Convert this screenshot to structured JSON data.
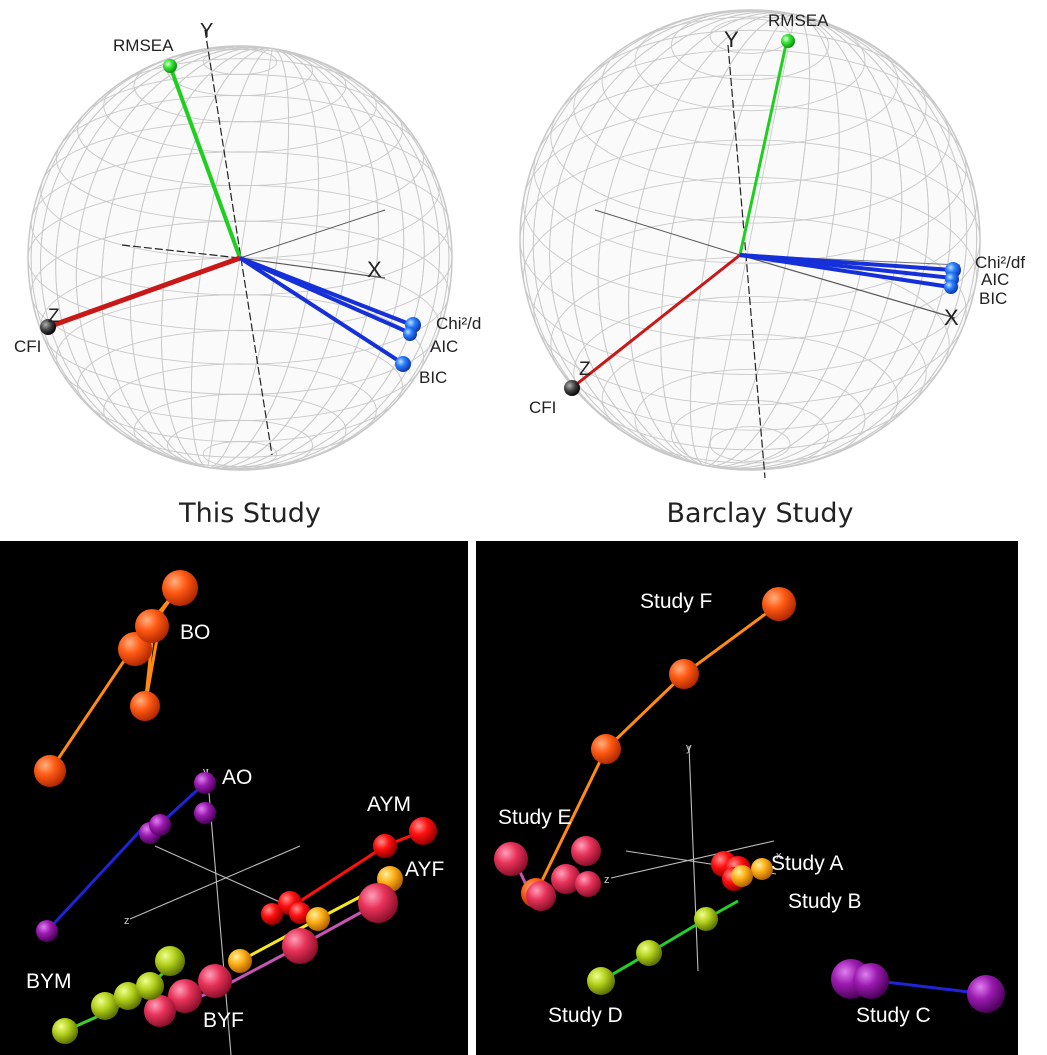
{
  "captions": {
    "left": "This Study",
    "right": "Barclay Study"
  },
  "axes": {
    "x": "X",
    "y": "Y",
    "z": "Z",
    "x_small": "x",
    "y_small": "y",
    "z_small": "z"
  },
  "sphere_left": {
    "labels": {
      "rmsea": "RMSEA",
      "cfi": "CFI",
      "chi": "Chi²/d",
      "aic": "AIC",
      "bic": "BIC"
    }
  },
  "sphere_right": {
    "labels": {
      "rmsea": "RMSEA",
      "cfi": "CFI",
      "chi": "Chi²/df",
      "aic": "AIC",
      "bic": "BIC"
    }
  },
  "scatter_left": {
    "labels": {
      "bo": "BO",
      "ao": "AO",
      "aym": "AYM",
      "ayf": "AYF",
      "bym": "BYM",
      "byf": "BYF"
    }
  },
  "scatter_right": {
    "labels": {
      "study_a": "Study A",
      "study_b": "Study B",
      "study_c": "Study C",
      "study_d": "Study D",
      "study_e": "Study E",
      "study_f": "Study F"
    }
  },
  "colors": {
    "rmsea_line": "#1fcf1f",
    "cfi_line": "#c81818",
    "fit_lines": "#1530d8",
    "orange": "#ff5a14",
    "purple": "#9b1bb0",
    "red": "#ff1010",
    "pink": "#e8335a",
    "yellow_green": "#b4d21e",
    "gold": "#ffb018"
  }
}
